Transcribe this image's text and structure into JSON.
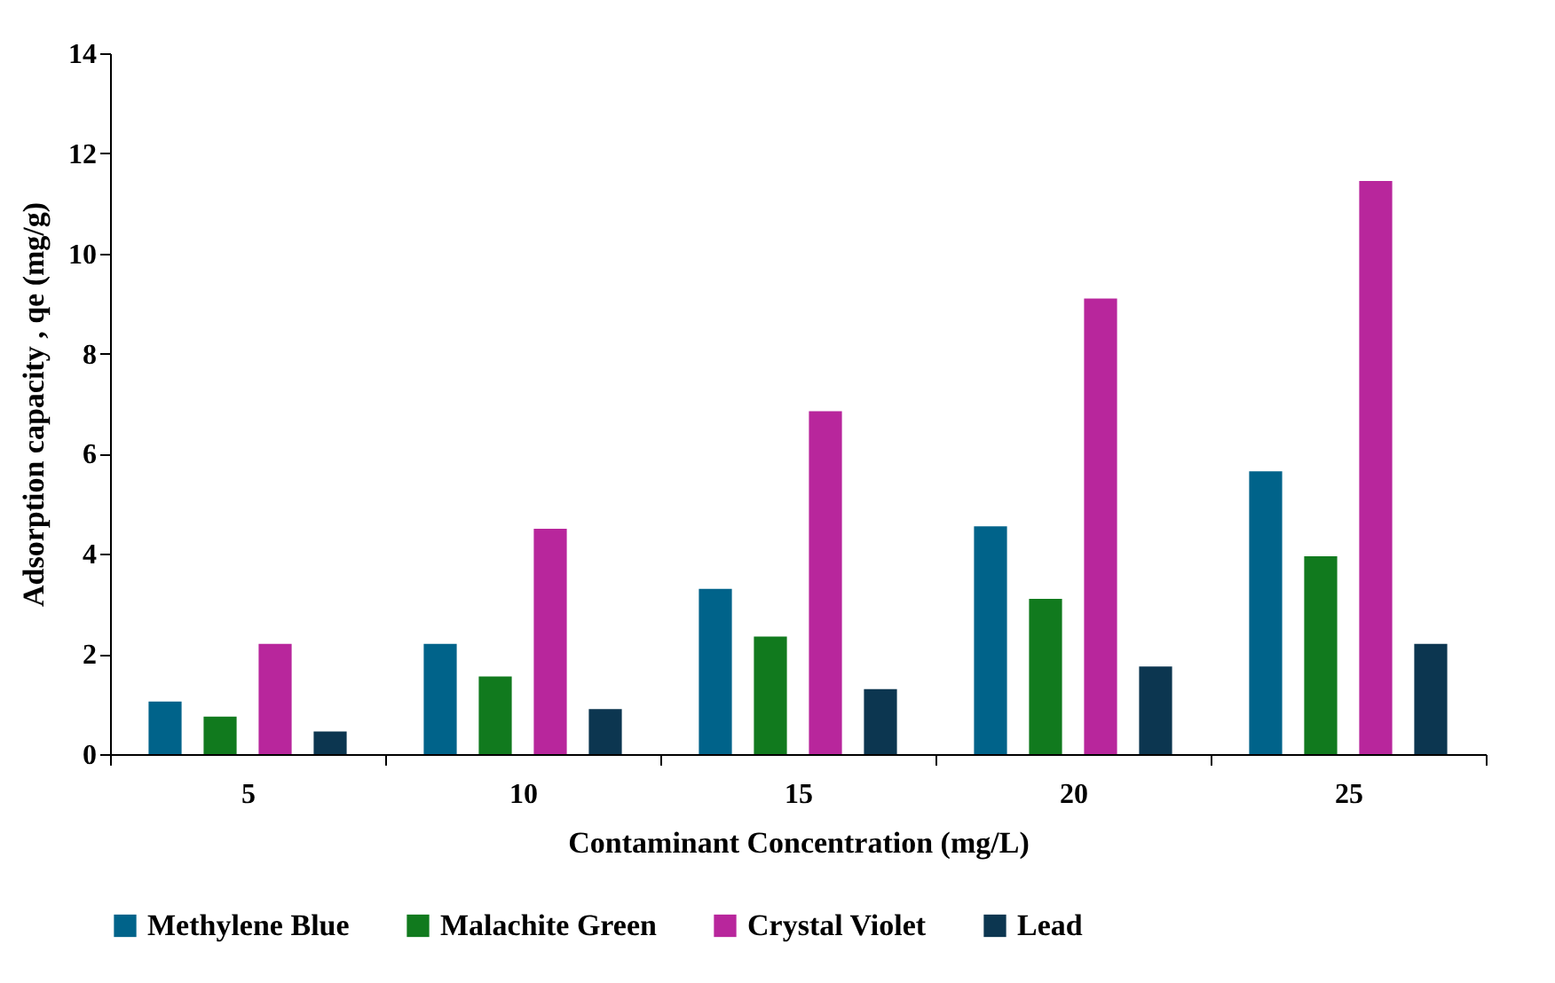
{
  "chart_data": {
    "type": "bar",
    "xlabel": "Contaminant Concentration (mg/L)",
    "ylabel": "Adsorption capacity , qe  (mg/g)",
    "categories": [
      "5",
      "10",
      "15",
      "20",
      "25"
    ],
    "series": [
      {
        "name": "Methylene Blue",
        "color": "#00638a",
        "values": [
          1.05,
          2.2,
          3.3,
          4.55,
          5.65
        ]
      },
      {
        "name": "Malachite Green",
        "color": "#117a1e",
        "values": [
          0.75,
          1.55,
          2.35,
          3.1,
          3.95
        ]
      },
      {
        "name": "Crystal Violet",
        "color": "#b8269c",
        "values": [
          2.2,
          4.5,
          6.85,
          9.1,
          11.45
        ]
      },
      {
        "name": "Lead",
        "color": "#0c3650",
        "values": [
          0.45,
          0.9,
          1.3,
          1.75,
          2.2
        ]
      }
    ],
    "ylim": [
      0,
      14
    ],
    "yticks": [
      0,
      2,
      4,
      6,
      8,
      10,
      12,
      14
    ],
    "grid": false,
    "legend": "bottom"
  }
}
